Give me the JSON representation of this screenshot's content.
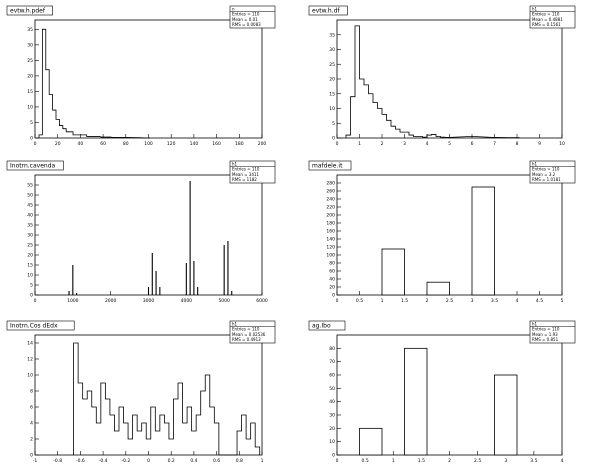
{
  "chart_data": [
    {
      "id": "tl",
      "type": "bar",
      "title": "evtw.h.pdef",
      "stats": [
        "n",
        "Entries = 110",
        "Mean = 0.01",
        "RMS = 0.0083"
      ],
      "xlim": [
        0,
        200
      ],
      "ylim": [
        0,
        38
      ],
      "xticks": [
        0,
        20,
        40,
        60,
        80,
        100,
        120,
        140,
        160,
        180,
        200
      ],
      "yticks": [
        0,
        5,
        10,
        15,
        20,
        25,
        30,
        35
      ],
      "style": "step",
      "x": [
        5,
        8,
        11,
        14,
        17,
        20,
        23,
        26,
        29,
        32,
        35,
        38,
        41,
        44,
        47,
        50,
        55,
        60,
        65,
        70,
        80,
        90,
        100
      ],
      "values": [
        1,
        35,
        22,
        14,
        9,
        6,
        4,
        3,
        2,
        2,
        1,
        1,
        1,
        1,
        0.5,
        0.5,
        0.5,
        0.3,
        0.3,
        0.2,
        0.2,
        0.1,
        0
      ]
    },
    {
      "id": "tr",
      "type": "bar",
      "title": "evtw.h.df",
      "stats": [
        "h1",
        "Entries = 110",
        "Mean = 0.4881",
        "RMS = 0.1561"
      ],
      "xlim": [
        0,
        10
      ],
      "ylim": [
        0,
        40
      ],
      "xticks": [
        0,
        1,
        2,
        3,
        4,
        5,
        6,
        7,
        8,
        9,
        10
      ],
      "yticks": [
        0,
        5,
        10,
        15,
        20,
        25,
        30,
        35
      ],
      "style": "step",
      "x": [
        0.5,
        0.7,
        0.9,
        1.1,
        1.3,
        1.5,
        1.7,
        1.9,
        2.1,
        2.3,
        2.5,
        2.7,
        2.9,
        3.1,
        3.3,
        3.5,
        3.7,
        3.9,
        4.1,
        4.3,
        4.5,
        4.7,
        4.9,
        6.0,
        7.0,
        8.0
      ],
      "values": [
        1,
        14,
        38,
        20,
        18,
        15,
        12,
        10,
        8,
        6,
        4,
        3,
        2,
        2,
        1,
        0.5,
        0.5,
        0.3,
        1,
        1.2,
        0.5,
        0.3,
        0.2,
        0.5,
        0.2,
        0.1
      ]
    },
    {
      "id": "ml",
      "type": "bar",
      "title": "Inotrn.cavenda",
      "stats": [
        "h1",
        "Entries = 110",
        "Mean = 3411",
        "RMS = 1182"
      ],
      "xlim": [
        0,
        6000
      ],
      "ylim": [
        0,
        60
      ],
      "xticks": [
        0,
        1000,
        2000,
        3000,
        4000,
        5000,
        6000
      ],
      "yticks": [
        0,
        5,
        10,
        15,
        20,
        25,
        30,
        35,
        40,
        45,
        50,
        55
      ],
      "style": "spike",
      "x": [
        900,
        1000,
        1100,
        3000,
        3100,
        3200,
        3300,
        4000,
        4100,
        4200,
        4300,
        5000,
        5100,
        5200
      ],
      "values": [
        2,
        15,
        1,
        4,
        21,
        12,
        4,
        16,
        57,
        17,
        4,
        25,
        27,
        2
      ]
    },
    {
      "id": "mr",
      "type": "bar",
      "title": "mafdele.it",
      "stats": [
        "h1",
        "Entries = 110",
        "Mean = 3.2",
        "RMS = 1.0181"
      ],
      "xlim": [
        0,
        5
      ],
      "ylim": [
        0,
        300
      ],
      "xticks": [
        0,
        0.5,
        1,
        1.5,
        2,
        2.5,
        3,
        3.5,
        4,
        4.5,
        5
      ],
      "yticks": [
        0,
        20,
        40,
        60,
        80,
        100,
        120,
        140,
        160,
        180,
        200,
        220,
        240,
        260,
        280
      ],
      "style": "bar",
      "bars": [
        [
          1,
          1.5,
          115
        ],
        [
          2,
          2.5,
          32
        ],
        [
          3,
          3.5,
          270
        ]
      ]
    },
    {
      "id": "bl",
      "type": "bar",
      "title": "Inotrn.Cos   dEdx",
      "stats": [
        "h1",
        "Entries = 110",
        "Mean = 0.02536",
        "RMS = 0.4913"
      ],
      "xlim": [
        -1,
        1
      ],
      "ylim": [
        0,
        15
      ],
      "xticks": [
        -1,
        -0.8,
        -0.6,
        -0.4,
        -0.2,
        0,
        0.2,
        0.4,
        0.6,
        0.8,
        1
      ],
      "yticks": [
        0,
        2,
        4,
        6,
        8,
        10,
        12,
        14
      ],
      "style": "step",
      "x": [
        -0.64,
        -0.6,
        -0.56,
        -0.52,
        -0.48,
        -0.44,
        -0.4,
        -0.36,
        -0.32,
        -0.28,
        -0.24,
        -0.2,
        -0.16,
        -0.12,
        -0.08,
        -0.04,
        0,
        0.04,
        0.08,
        0.12,
        0.16,
        0.2,
        0.24,
        0.28,
        0.32,
        0.36,
        0.4,
        0.44,
        0.48,
        0.52,
        0.56,
        0.6,
        0.64,
        0.68,
        0.72,
        0.76,
        0.8,
        0.84,
        0.88,
        0.92,
        0.96
      ],
      "values": [
        14,
        9,
        7,
        8,
        6,
        4,
        9,
        7,
        5,
        3,
        6,
        4,
        2,
        5,
        3,
        4,
        2,
        6,
        3,
        5,
        4,
        2,
        7,
        9,
        4,
        6,
        3,
        5,
        8,
        10,
        6,
        4,
        0,
        0,
        0,
        0,
        3,
        5,
        2,
        4,
        1
      ]
    },
    {
      "id": "br",
      "type": "bar",
      "title": "ag.Ibo",
      "stats": [
        "h1",
        "Entries = 110",
        "Mean = 1.93",
        "RMS = 0.851"
      ],
      "xlim": [
        0,
        4
      ],
      "ylim": [
        0,
        90
      ],
      "xticks": [
        0,
        0.5,
        1,
        1.5,
        2,
        2.5,
        3,
        3.5,
        4
      ],
      "yticks": [
        0,
        10,
        20,
        30,
        40,
        50,
        60,
        70,
        80
      ],
      "style": "bar",
      "bars": [
        [
          0.4,
          0.8,
          20
        ],
        [
          1.2,
          1.6,
          80
        ],
        [
          2.8,
          3.2,
          60
        ]
      ]
    }
  ]
}
